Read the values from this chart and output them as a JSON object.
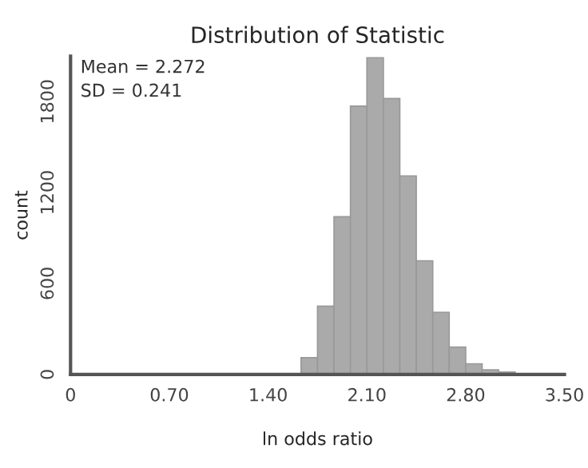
{
  "chart_data": {
    "type": "histogram",
    "title": "Distribution of Statistic",
    "xlabel": "ln odds ratio",
    "ylabel": "count",
    "bins": [
      1.6333,
      1.75,
      1.8667,
      1.9833,
      2.1,
      2.2167,
      2.3333,
      2.45,
      2.5667,
      2.6833,
      2.8,
      2.9167,
      3.0333,
      3.15
    ],
    "values": [
      110,
      450,
      1040,
      1770,
      2090,
      1820,
      1310,
      750,
      410,
      180,
      70,
      30,
      15
    ],
    "color": "#aaaaaa",
    "xlim": [
      0,
      3.5
    ],
    "xticks": [
      0,
      {
        "value": 0.7,
        "label": "0.70"
      },
      {
        "value": 1.4,
        "label": "1.40"
      },
      {
        "value": 2.1,
        "label": "2.10"
      },
      {
        "value": 2.8,
        "label": "2.80"
      },
      {
        "value": 3.5,
        "label": "3.50"
      }
    ],
    "ylim": [
      0,
      2100
    ],
    "yticks": [
      0,
      600,
      1200,
      1800
    ],
    "annotations": [
      "Mean = 2.272",
      "SD = 0.241"
    ],
    "grid": false,
    "legend": false
  }
}
